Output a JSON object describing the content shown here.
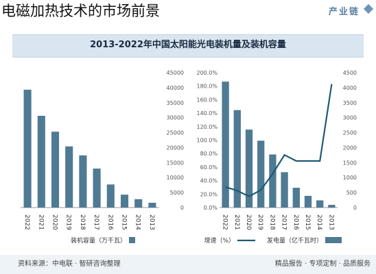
{
  "page": {
    "title": "电磁加热技术的市场前景",
    "brand": "产业链",
    "chart_title": "2013-2022年中国太阳能光电装机量及装机容量",
    "footer_source": "资料来源：中电联 · 智研咨询整理",
    "footer_slogan": "精品报告 · 专项定制 · 品质服务"
  },
  "colors": {
    "bar": "#4f7a93",
    "line": "#1f5a73",
    "header_bg": "#d9e5f0"
  },
  "chart_data": [
    {
      "type": "bar",
      "categories": [
        "2022",
        "2021",
        "2020",
        "2019",
        "2018",
        "2017",
        "2016",
        "2015",
        "2014",
        "2013"
      ],
      "series": [
        {
          "name": "装机容量（万千瓦）",
          "values": [
            39300,
            30600,
            25300,
            20400,
            17400,
            13000,
            7700,
            4300,
            2800,
            1600
          ]
        }
      ],
      "ylim": [
        0,
        45000
      ],
      "y_ticks": [
        "45000",
        "40000",
        "35000",
        "30000",
        "25000",
        "20000",
        "15000",
        "10000",
        "5000",
        "0"
      ],
      "y_axis_side": "right",
      "legend": {
        "placement": "bottom",
        "label": "装机容量（万千瓦）"
      }
    },
    {
      "type": "bar",
      "categories": [
        "2022",
        "2021",
        "2020",
        "2019",
        "2018",
        "2017",
        "2016",
        "2015",
        "2014",
        "2013"
      ],
      "series": [
        {
          "name": "发电量（亿千瓦时）",
          "type": "bar",
          "axis": "right",
          "values": [
            4200,
            3250,
            2600,
            2230,
            1770,
            1180,
            660,
            390,
            240,
            90
          ]
        },
        {
          "name": "增速（%）",
          "type": "line",
          "axis": "left",
          "values": [
            30.5,
            25.0,
            16.5,
            26.0,
            50.0,
            78.0,
            69.0,
            69.0,
            69.0,
            183.0
          ]
        }
      ],
      "ylim_left": [
        0,
        200
      ],
      "ylim_right": [
        0,
        4500
      ],
      "y_ticks_left": [
        "200.0%",
        "180.0%",
        "160.0%",
        "140.0%",
        "120.0%",
        "100.0%",
        "80.0%",
        "60.0%",
        "40.0%",
        "20.0%",
        "0.0%"
      ],
      "y_ticks_right": [
        "4500",
        "4000",
        "3500",
        "3000",
        "2500",
        "2000",
        "1500",
        "1000",
        "500",
        "0"
      ],
      "legend": {
        "placement": "bottom",
        "labels": [
          "增速（%）",
          "发电量（亿千瓦时）"
        ]
      }
    }
  ]
}
